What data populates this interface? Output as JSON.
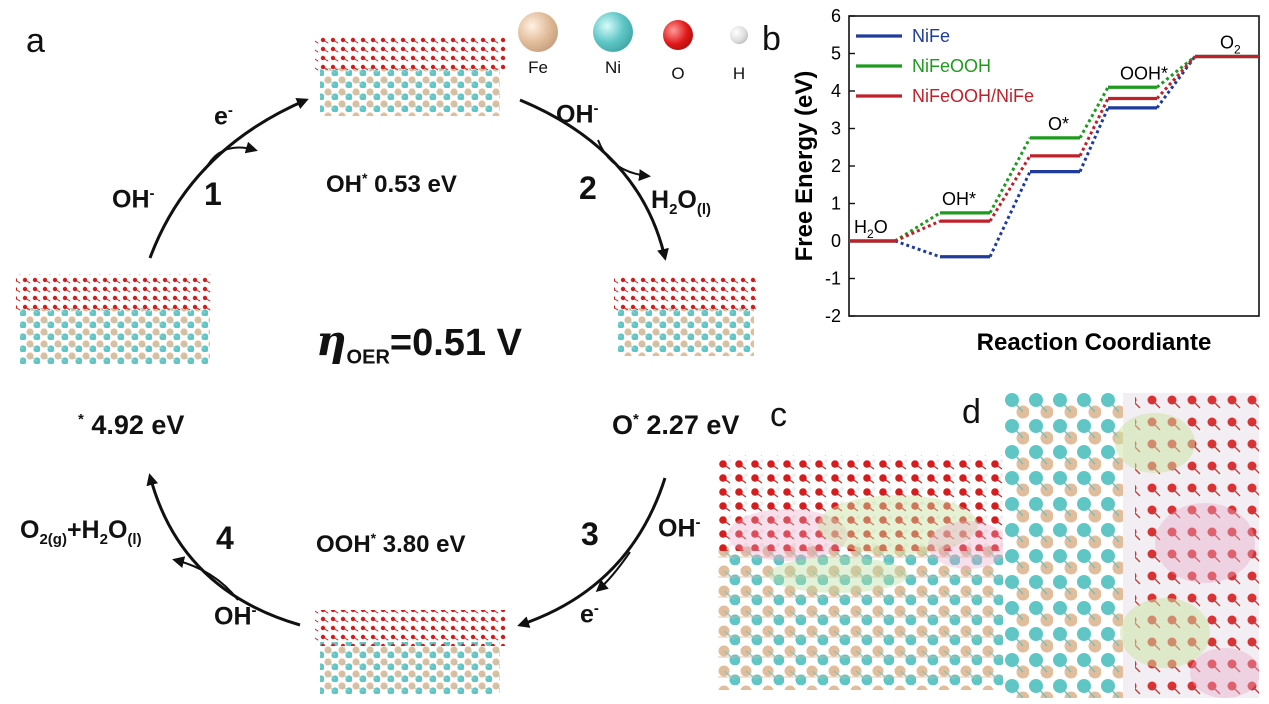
{
  "panels": {
    "a": "a",
    "b": "b",
    "c": "c",
    "d": "d"
  },
  "atom_legend": [
    {
      "label": "Fe",
      "color": "#e2bd9c",
      "icon": "fe-atom-icon"
    },
    {
      "label": "Ni",
      "color": "#5fc6c6",
      "icon": "ni-atom-icon"
    },
    {
      "label": "O",
      "color": "#e01818",
      "icon": "o-atom-icon"
    },
    {
      "label": "H",
      "color": "#e6e6e6",
      "icon": "h-atom-icon"
    }
  ],
  "cycle": {
    "overpotential_symbol": "η",
    "overpotential_sub": "OER",
    "overpotential_value": "=0.51 V",
    "steps": [
      {
        "number": "1",
        "reactant": "OH",
        "reactant_sup": "-",
        "product": "e",
        "product_sup": "-"
      },
      {
        "number": "2",
        "reactant": "OH",
        "reactant_sup": "-",
        "product": "H",
        "product_sub1": "2",
        "product_mid": "O",
        "product_sub2": "(l)"
      },
      {
        "number": "3",
        "reactant": "OH",
        "reactant_sup": "-",
        "product": "e",
        "product_sup": "-"
      },
      {
        "number": "4",
        "reactant": "OH",
        "reactant_sup": "-",
        "product": "O",
        "product_sub1": "2(g)",
        "product_mid": "+H",
        "product_sub2": "2",
        "product_end": "O",
        "product_sub3": "(l)"
      }
    ],
    "intermediates": [
      {
        "name": "OH",
        "sup": "*",
        "energy": " 0.53 eV"
      },
      {
        "name": "O",
        "sup": "*",
        "energy": " 2.27 eV"
      },
      {
        "name": "OOH",
        "sup": "*",
        "energy": " 3.80 eV"
      },
      {
        "name": "",
        "sup": "*",
        "energy": " 4.92 eV"
      }
    ]
  },
  "chart_data": {
    "type": "line",
    "xlabel": "Reaction Coordiante",
    "ylabel": "Free Energy (eV)",
    "ylim": [
      -2,
      6
    ],
    "yticks": [
      "-2",
      "-1",
      "0",
      "1",
      "2",
      "3",
      "4",
      "5",
      "6"
    ],
    "grid": false,
    "legend_position": "top-left",
    "categories": [
      "H2O",
      "OH*",
      "O*",
      "OOH*",
      "O2"
    ],
    "state_labels": [
      {
        "text": "H",
        "sub": "2",
        "tail": "O"
      },
      {
        "text": "OH*",
        "sub": "",
        "tail": ""
      },
      {
        "text": "O*",
        "sub": "",
        "tail": ""
      },
      {
        "text": "OOH*",
        "sub": "",
        "tail": ""
      },
      {
        "text": "O",
        "sub": "2",
        "tail": ""
      }
    ],
    "series": [
      {
        "name": "NiFe",
        "color": "#1f3b9c",
        "values": [
          0,
          -0.42,
          1.85,
          3.55,
          4.92
        ]
      },
      {
        "name": "NiFeOOH",
        "color": "#1e9a1e",
        "values": [
          0,
          0.75,
          2.75,
          4.1,
          4.92
        ]
      },
      {
        "name": "NiFeOOH/NiFe",
        "color": "#c0202a",
        "values": [
          0,
          0.53,
          2.27,
          3.8,
          4.92
        ]
      }
    ]
  }
}
